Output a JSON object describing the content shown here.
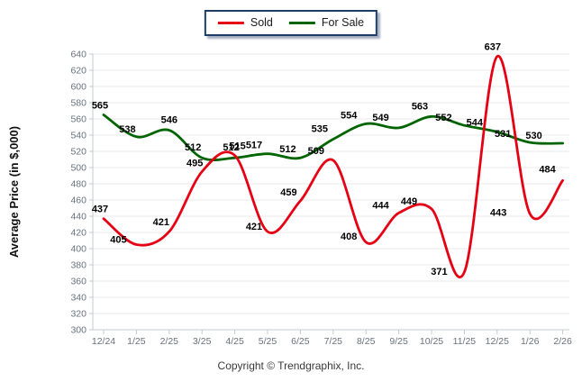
{
  "legend": {
    "items": [
      {
        "label": "Sold",
        "color": "#e60013"
      },
      {
        "label": "For Sale",
        "color": "#006400"
      }
    ]
  },
  "footer": {
    "copyright": "Copyright © Trendgraphix, Inc."
  },
  "colors": {
    "sold": "#e60013",
    "for_sale": "#006400",
    "grid": "#e9e9ec",
    "axis": "#c3c9d1",
    "tick_label": "#67727d",
    "data_label": "#000000",
    "legend_border": "#1f3c67",
    "background": "#ffffff"
  },
  "chart_data": {
    "type": "line",
    "x": [
      "12/24",
      "1/25",
      "2/25",
      "3/25",
      "4/25",
      "5/25",
      "6/25",
      "7/25",
      "8/25",
      "9/25",
      "10/25",
      "11/25",
      "12/25",
      "1/26",
      "2/26"
    ],
    "series": [
      {
        "name": "Sold",
        "color": "#e60013",
        "values": [
          437,
          405,
          421,
          495,
          515,
          421,
          459,
          509,
          408,
          444,
          449,
          371,
          637,
          443,
          484
        ]
      },
      {
        "name": "For Sale",
        "color": "#006400",
        "values": [
          565,
          538,
          546,
          512,
          512,
          517,
          512,
          535,
          554,
          549,
          563,
          552,
          544,
          531,
          530
        ]
      }
    ],
    "title": "",
    "xlabel": "",
    "ylabel": "Average Price (in $,000)",
    "ylim": [
      300,
      640
    ],
    "ytick_step": 20,
    "grid": "horizontal",
    "legend_position": "top-center",
    "smooth": true,
    "data_labels": true,
    "label_offsets": {
      "Sold": [
        [
          -4,
          -7
        ],
        [
          -20,
          -2
        ],
        [
          -9,
          -7
        ],
        [
          -8,
          -6
        ],
        [
          3,
          -7
        ],
        [
          -15,
          -2
        ],
        [
          -13,
          -6
        ],
        [
          -19,
          -7
        ],
        [
          -19,
          -3
        ],
        [
          -20,
          -5
        ],
        [
          -25,
          -5
        ],
        [
          -28,
          3
        ],
        [
          -5,
          -7
        ],
        [
          -35,
          2
        ],
        [
          -17,
          -9
        ]
      ],
      "For Sale": [
        [
          -4,
          -7
        ],
        [
          -10,
          -5
        ],
        [
          0,
          -8
        ],
        [
          -10,
          -8
        ],
        [
          -4,
          -8
        ],
        [
          -15,
          -6
        ],
        [
          -14,
          -6
        ],
        [
          -15,
          -8
        ],
        [
          -19,
          -6
        ],
        [
          -20,
          -8
        ],
        [
          -13,
          -8
        ],
        [
          -23,
          -5
        ],
        [
          -25,
          -7
        ],
        [
          -30,
          -6
        ],
        [
          -32,
          -5
        ]
      ]
    }
  }
}
